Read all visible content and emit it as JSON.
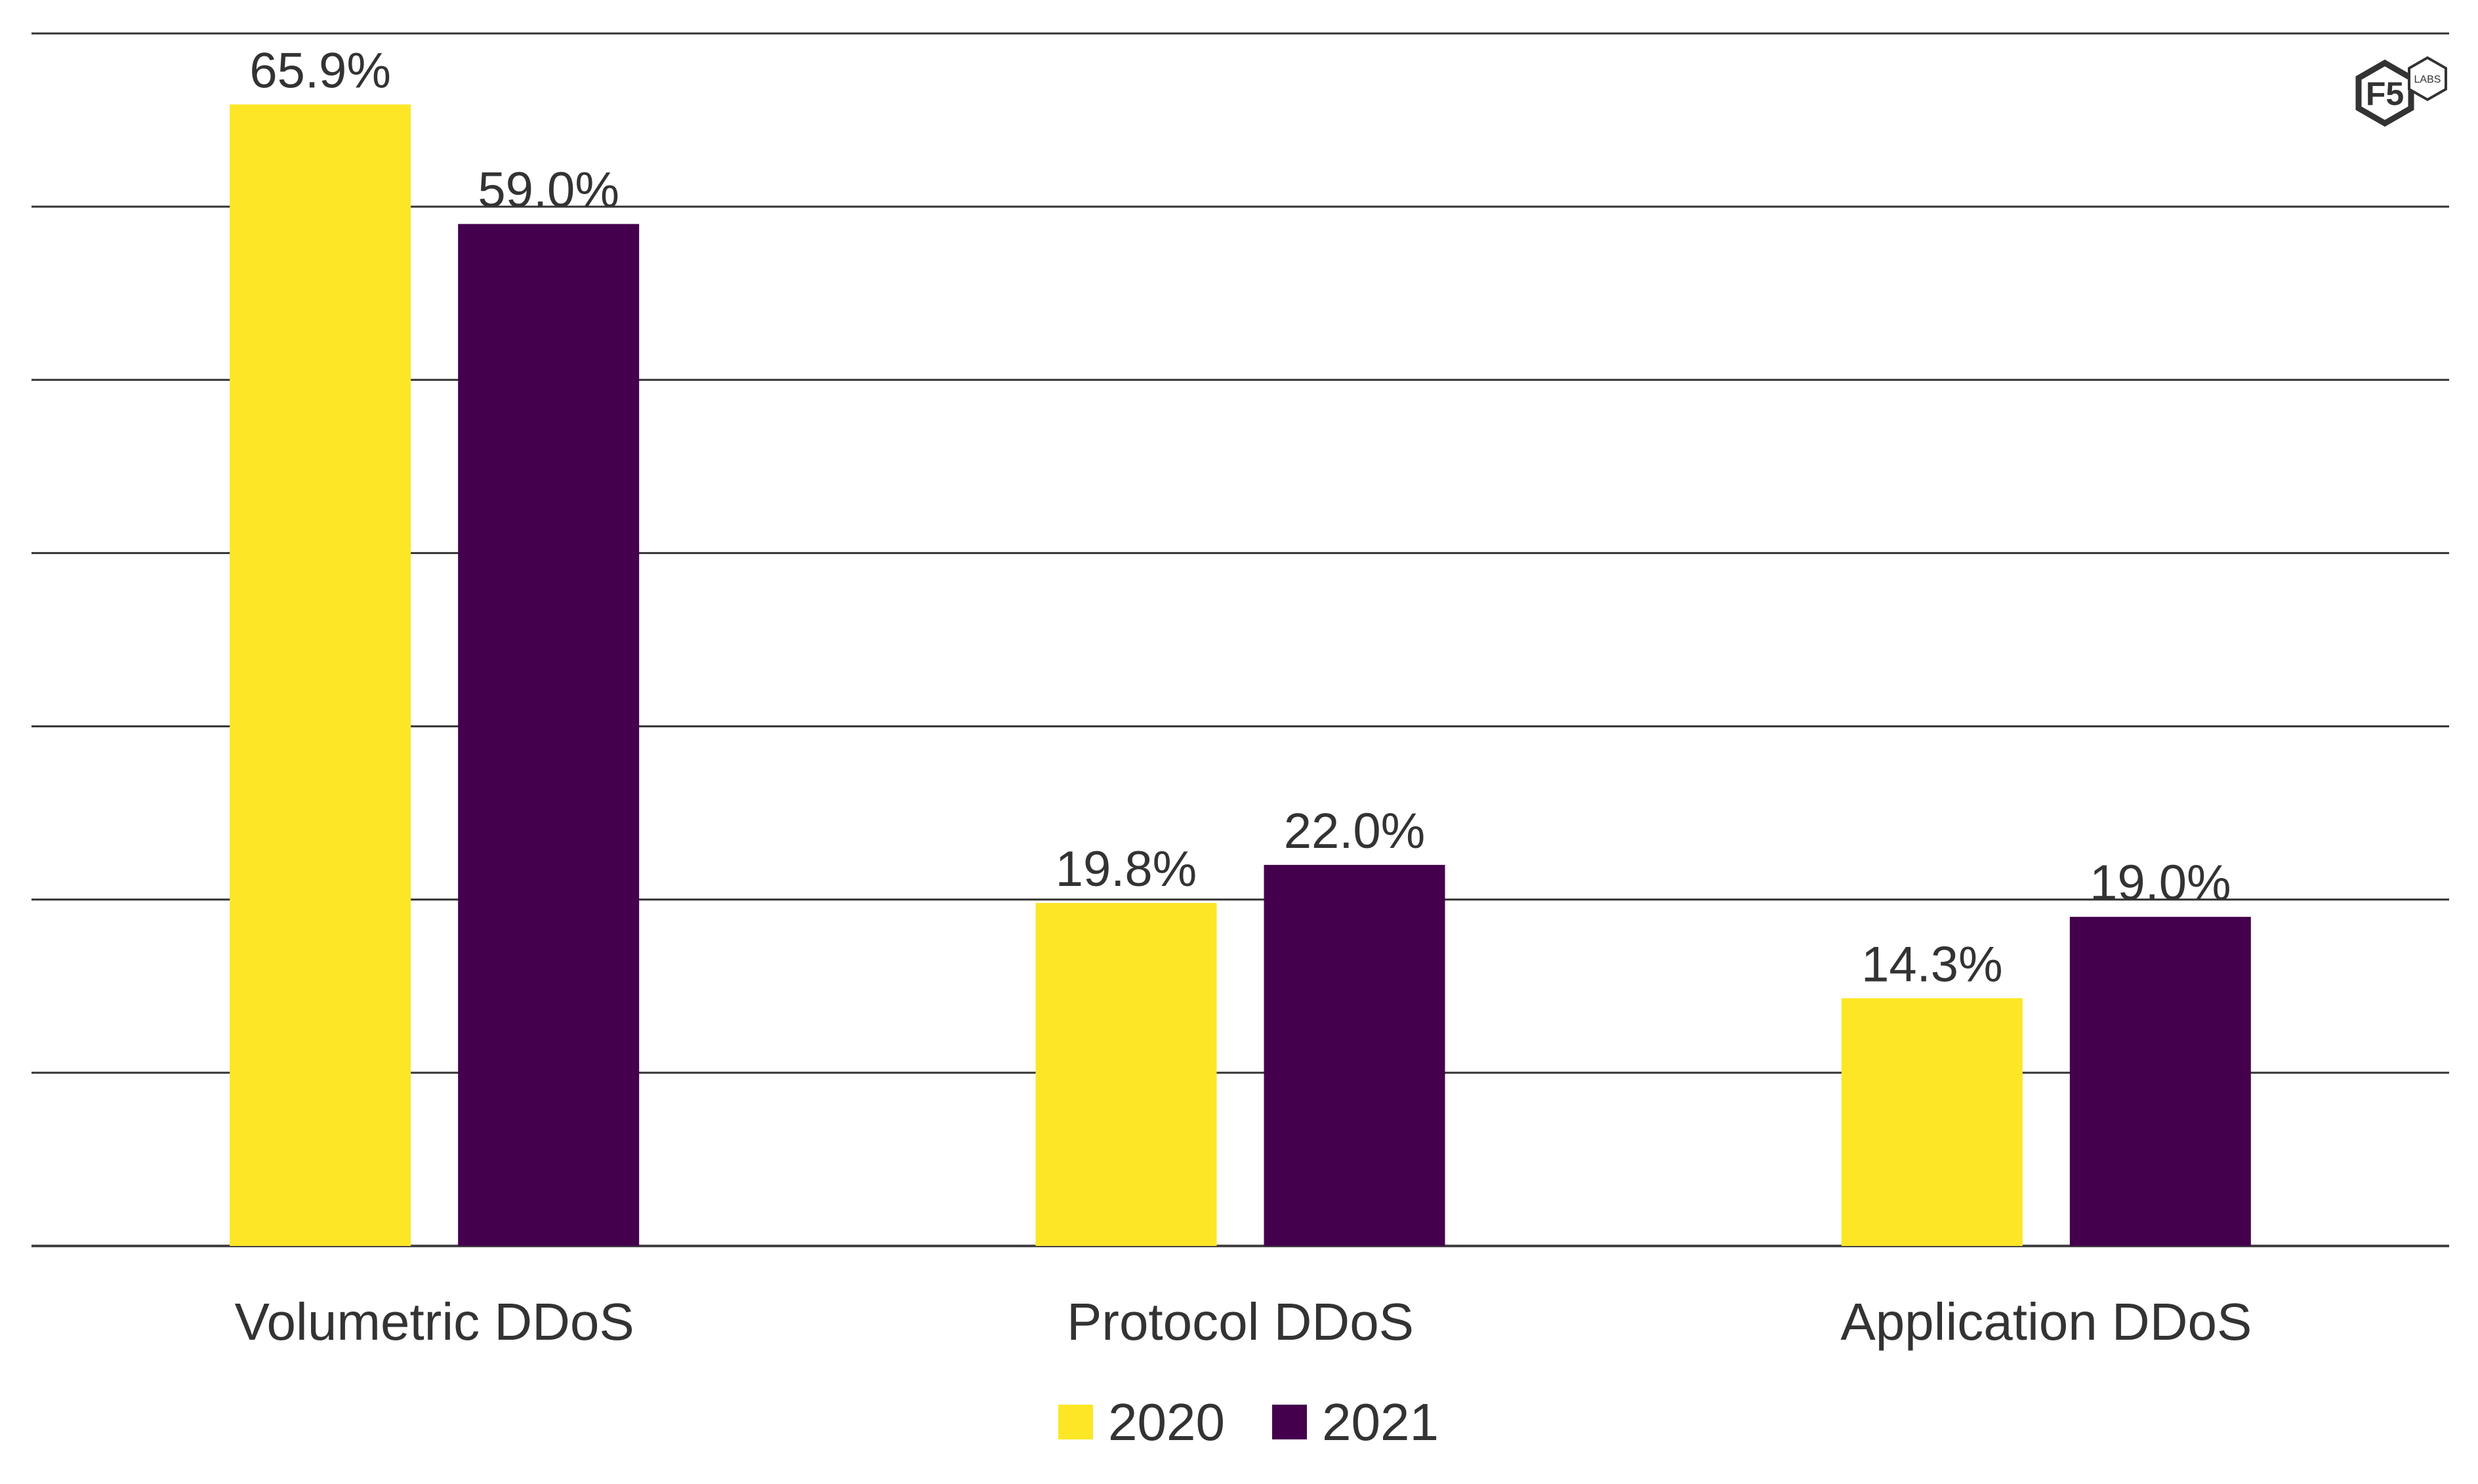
{
  "chart_data": {
    "type": "bar",
    "title": "",
    "xlabel": "",
    "ylabel": "",
    "ylim": [
      0,
      70
    ],
    "grid": true,
    "gridlines": [
      0,
      10,
      20,
      30,
      40,
      50,
      60,
      70
    ],
    "categories": [
      "Volumetric DDoS",
      "Protocol DDoS",
      "Application DDoS"
    ],
    "series": [
      {
        "name": "2020",
        "color": "#FCE625",
        "values": [
          65.9,
          19.8,
          14.3
        ],
        "labels": [
          "65.9%",
          "19.8%",
          "14.3%"
        ]
      },
      {
        "name": "2021",
        "color": "#44004D",
        "values": [
          59.0,
          22.0,
          19.0
        ],
        "labels": [
          "59.0%",
          "22.0%",
          "19.0%"
        ]
      }
    ],
    "legend_position": "bottom"
  },
  "logo": {
    "text": "F5",
    "subtext": "LABS"
  }
}
